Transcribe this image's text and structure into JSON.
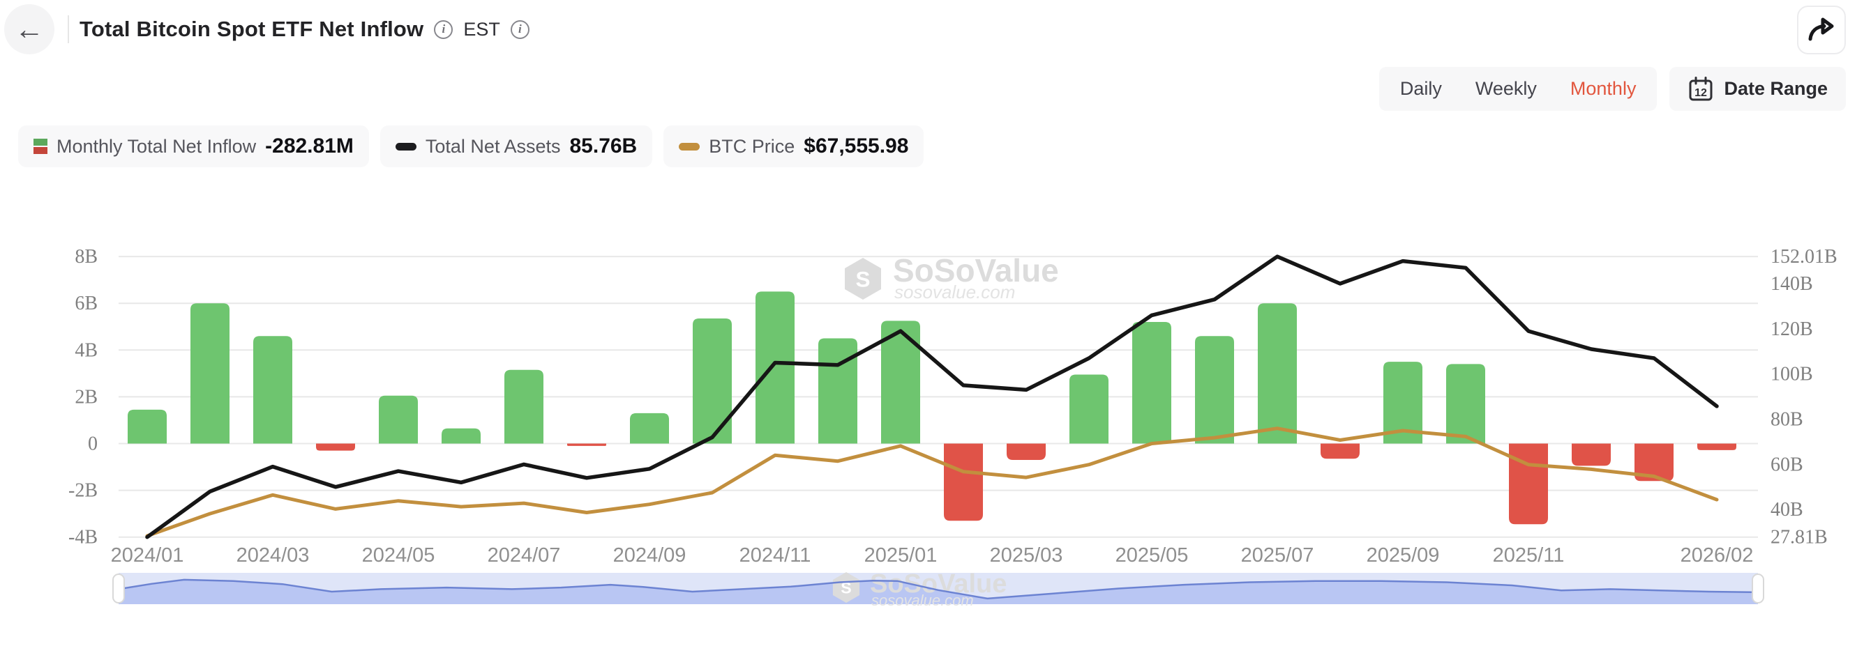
{
  "header": {
    "title": "Total Bitcoin Spot ETF Net Inflow",
    "est_label": "EST"
  },
  "toolbar": {
    "tabs": [
      "Daily",
      "Weekly",
      "Monthly"
    ],
    "active_tab": "Monthly",
    "date_range_label": "Date Range",
    "calendar_day": "12"
  },
  "legend": [
    {
      "label": "Monthly Total Net Inflow",
      "value": "-282.81M",
      "icon": "split-green-red-square"
    },
    {
      "label": "Total Net Assets",
      "value": "85.76B",
      "icon": "black-dash"
    },
    {
      "label": "BTC Price",
      "value": "$67,555.98",
      "icon": "gold-dash"
    }
  ],
  "watermark": {
    "brand": "SoSoValue",
    "domain": "sosovalue.com"
  },
  "colors": {
    "bar_positive": "#6ec56f",
    "bar_negative": "#e05348",
    "net_assets_line": "#161616",
    "btc_line": "#c28f3e",
    "active_tab": "#e2563e",
    "grid": "#e8e8e8",
    "y_tick": "#7f7f7f",
    "x_tick": "#8f8f8f",
    "watermark_fill": "#dcdcdc",
    "minimap_bg": "#dfe5f8",
    "minimap_fill": "#b9c6f3",
    "minimap_line": "#6c83d2"
  },
  "chart_data": {
    "type": "combo-bar-line",
    "title": "Total Bitcoin Spot ETF Net Inflow (Monthly)",
    "grid": true,
    "legend_position": "top-left",
    "categories": [
      "2024/01",
      "2024/02",
      "2024/03",
      "2024/04",
      "2024/05",
      "2024/06",
      "2024/07",
      "2024/08",
      "2024/09",
      "2024/10",
      "2024/11",
      "2024/12",
      "2025/01",
      "2025/02",
      "2025/03",
      "2025/04",
      "2025/05",
      "2025/06",
      "2025/07",
      "2025/08",
      "2025/09",
      "2025/10",
      "2025/11",
      "2025/12",
      "2026/01",
      "2026/02"
    ],
    "x_tick_labels": [
      "2024/01",
      "2024/03",
      "2024/05",
      "2024/07",
      "2024/09",
      "2024/11",
      "2025/01",
      "2025/03",
      "2025/05",
      "2025/07",
      "2025/09",
      "2025/11",
      "2026/02"
    ],
    "series": [
      {
        "name": "Monthly Total Net Inflow",
        "type": "bar",
        "axis": "left",
        "unit": "B USD",
        "values": [
          1.45,
          6.0,
          4.6,
          -0.3,
          2.05,
          0.65,
          3.15,
          -0.1,
          1.3,
          5.35,
          6.5,
          4.5,
          5.25,
          -3.3,
          -0.7,
          2.95,
          5.2,
          4.6,
          6.0,
          -0.65,
          3.5,
          3.4,
          -3.45,
          -0.95,
          -1.6,
          -0.28
        ]
      },
      {
        "name": "Total Net Assets",
        "type": "line",
        "axis": "right",
        "unit": "B USD",
        "values": [
          27.81,
          48,
          59,
          50,
          57,
          52,
          60,
          54,
          58,
          72,
          105,
          104,
          119,
          95,
          93,
          107,
          126,
          133,
          152.01,
          140,
          150,
          147,
          119,
          111,
          107,
          85.76
        ]
      },
      {
        "name": "BTC Price",
        "type": "line",
        "axis": "hidden",
        "unit": "display units on left axis (price axis not shown; latest value shown in legend = $67,555.98)",
        "values": [
          -3.95,
          -3.0,
          -2.2,
          -2.8,
          -2.45,
          -2.7,
          -2.55,
          -2.95,
          -2.6,
          -2.1,
          -0.5,
          -0.75,
          -0.1,
          -1.2,
          -1.45,
          -0.9,
          0.0,
          0.25,
          0.65,
          0.15,
          0.55,
          0.3,
          -0.9,
          -1.1,
          -1.4,
          -2.4
        ]
      }
    ],
    "left_axis": {
      "min": -4,
      "max": 8,
      "tick_values": [
        8,
        6,
        4,
        2,
        0,
        -2,
        -4
      ],
      "tick_labels": [
        "8B",
        "6B",
        "4B",
        "2B",
        "0",
        "-2B",
        "-4B"
      ]
    },
    "right_axis": {
      "min": 27.81,
      "max": 152.01,
      "tick_values": [
        152.01,
        140,
        120,
        100,
        80,
        60,
        40,
        27.81
      ],
      "tick_labels": [
        "152.01B",
        "140B",
        "120B",
        "100B",
        "80B",
        "60B",
        "40B",
        "27.81B"
      ]
    }
  },
  "minimap": {
    "points": [
      [
        0,
        0.52
      ],
      [
        0.02,
        0.35
      ],
      [
        0.04,
        0.22
      ],
      [
        0.07,
        0.26
      ],
      [
        0.1,
        0.36
      ],
      [
        0.13,
        0.6
      ],
      [
        0.16,
        0.52
      ],
      [
        0.2,
        0.47
      ],
      [
        0.24,
        0.52
      ],
      [
        0.27,
        0.47
      ],
      [
        0.3,
        0.38
      ],
      [
        0.32,
        0.45
      ],
      [
        0.35,
        0.6
      ],
      [
        0.38,
        0.52
      ],
      [
        0.41,
        0.44
      ],
      [
        0.44,
        0.3
      ],
      [
        0.46,
        0.25
      ],
      [
        0.475,
        0.26
      ],
      [
        0.5,
        0.55
      ],
      [
        0.53,
        0.82
      ],
      [
        0.57,
        0.66
      ],
      [
        0.61,
        0.5
      ],
      [
        0.65,
        0.38
      ],
      [
        0.69,
        0.3
      ],
      [
        0.73,
        0.26
      ],
      [
        0.77,
        0.26
      ],
      [
        0.81,
        0.3
      ],
      [
        0.85,
        0.4
      ],
      [
        0.88,
        0.56
      ],
      [
        0.91,
        0.52
      ],
      [
        0.94,
        0.56
      ],
      [
        0.97,
        0.6
      ],
      [
        1,
        0.62
      ]
    ]
  }
}
